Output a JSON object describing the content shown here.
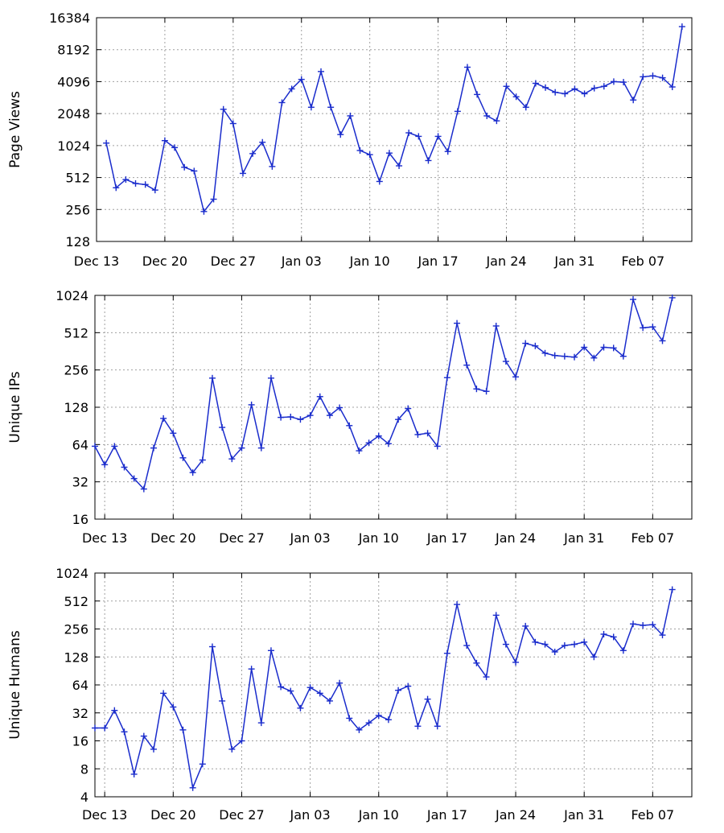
{
  "chart_data": [
    {
      "type": "line",
      "ylabel": "Page Views",
      "yscale": "log2",
      "ylim": [
        128,
        16384
      ],
      "yticks": [
        "128",
        "256",
        "512",
        "1024",
        "2048",
        "4096",
        "8192",
        "16384"
      ],
      "xlabels": [
        "Dec 13",
        "Dec 20",
        "Dec 27",
        "Jan 03",
        "Jan 10",
        "Jan 17",
        "Jan 24",
        "Jan 31",
        "Feb 07"
      ],
      "xrange": [
        "Dec 13",
        "Feb 12"
      ],
      "first_date": "Dec 14",
      "grid": true,
      "color": "#1a2ccc",
      "values": [
        1080,
        410,
        490,
        450,
        440,
        390,
        1140,
        980,
        640,
        590,
        245,
        320,
        2250,
        1650,
        560,
        860,
        1100,
        650,
        2600,
        3500,
        4300,
        2350,
        5100,
        2350,
        1300,
        1950,
        920,
        840,
        470,
        870,
        660,
        1350,
        1250,
        740,
        1250,
        900,
        2150,
        5600,
        3100,
        1950,
        1750,
        3700,
        2950,
        2350,
        3950,
        3600,
        3250,
        3150,
        3500,
        3150,
        3550,
        3700,
        4100,
        4050,
        2750,
        4550,
        4650,
        4450,
        3650,
        13500
      ]
    },
    {
      "type": "line",
      "ylabel": "Unique IPs",
      "yscale": "log2",
      "ylim": [
        16,
        1024
      ],
      "yticks": [
        "16",
        "32",
        "64",
        "128",
        "256",
        "512",
        "1024"
      ],
      "xlabels": [
        "Dec 13",
        "Dec 20",
        "Dec 27",
        "Jan 03",
        "Jan 10",
        "Jan 17",
        "Jan 24",
        "Jan 31",
        "Feb 07"
      ],
      "xrange": [
        "Dec 12",
        "Feb 11"
      ],
      "first_date": "Dec 12",
      "grid": true,
      "color": "#1a2ccc",
      "values": [
        62,
        44,
        62,
        42,
        34,
        28,
        60,
        104,
        79,
        50,
        38,
        48,
        220,
        88,
        49,
        60,
        134,
        60,
        220,
        106,
        107,
        102,
        110,
        156,
        110,
        127,
        91,
        57,
        66,
        75,
        65,
        102,
        125,
        77,
        79,
        62,
        222,
        610,
        280,
        180,
        172,
        580,
        300,
        225,
        420,
        400,
        350,
        335,
        330,
        325,
        390,
        320,
        390,
        385,
        330,
        950,
        560,
        570,
        440,
        980
      ]
    },
    {
      "type": "line",
      "ylabel": "Unique Humans",
      "yscale": "log2",
      "ylim": [
        4,
        1024
      ],
      "yticks": [
        "4",
        "8",
        "16",
        "32",
        "64",
        "128",
        "256",
        "512",
        "1024"
      ],
      "xlabels": [
        "Dec 13",
        "Dec 20",
        "Dec 27",
        "Jan 03",
        "Jan 10",
        "Jan 17",
        "Jan 24",
        "Jan 31",
        "Feb 07"
      ],
      "xrange": [
        "Dec 12",
        "Feb 11"
      ],
      "first_date": "Dec 12",
      "grid": true,
      "color": "#1a2ccc",
      "values": [
        22,
        22,
        34,
        20,
        7,
        18,
        13,
        52,
        37,
        21,
        5,
        9,
        165,
        43,
        13,
        16,
        95,
        25,
        150,
        61,
        55,
        36,
        60,
        52,
        43,
        67,
        28,
        21,
        25,
        30,
        27,
        56,
        62,
        23,
        45,
        23,
        140,
        470,
        170,
        110,
        78,
        360,
        175,
        112,
        275,
        185,
        175,
        145,
        170,
        175,
        185,
        128,
        225,
        210,
        150,
        290,
        280,
        285,
        220,
        680
      ]
    }
  ]
}
